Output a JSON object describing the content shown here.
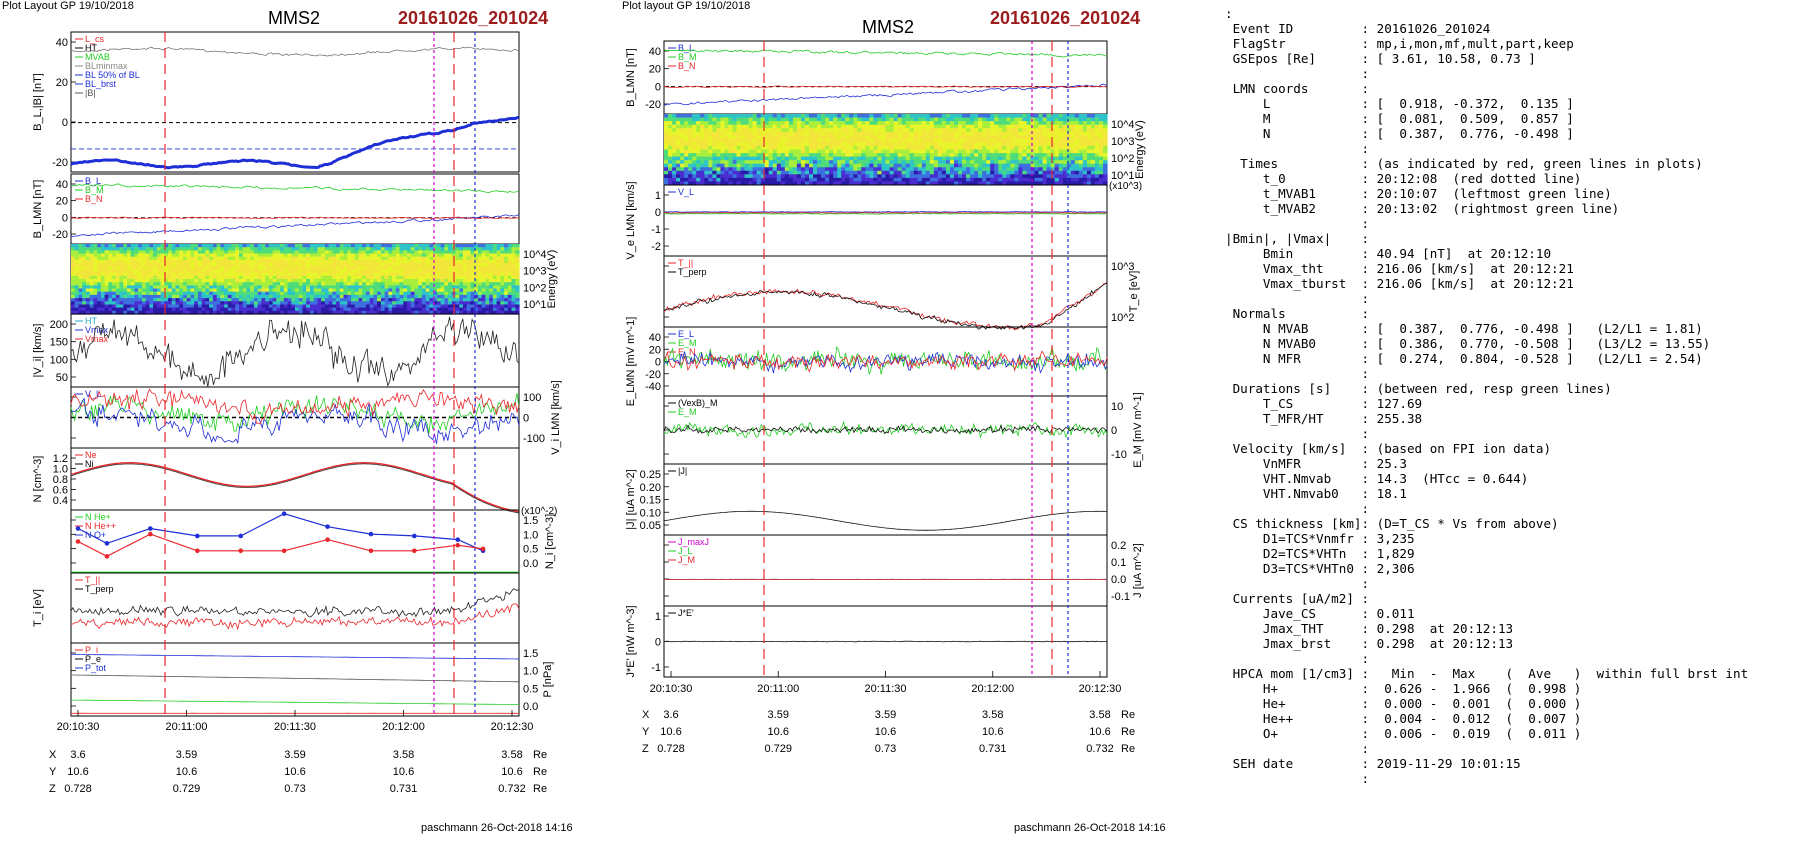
{
  "header": {
    "left_plot_label": "Plot Layout GP 19/10/2018",
    "mid_plot_label": "Plot layout GP 19/10/2018",
    "spacecraft": "MMS2",
    "event": "20161026_201024",
    "footer": "paschmann 26-Oct-2018 14:16"
  },
  "colors": {
    "event_red": "#9b1c1c",
    "red_line": "#e8262b",
    "magenta_line": "#d100d1",
    "blue_line": "#1f2fd6",
    "green_trace": "#22cc22"
  },
  "time_axis": {
    "ticks": [
      "20:10:30",
      "20:11:00",
      "20:11:30",
      "20:12:00",
      "20:12:30"
    ],
    "ephem": {
      "X": [
        "3.6",
        "3.59",
        "3.59",
        "3.58",
        "3.58"
      ],
      "Y": [
        "10.6",
        "10.6",
        "10.6",
        "10.6",
        "10.6"
      ],
      "Z": [
        "0.728",
        "0.729",
        "0.73",
        "0.731",
        "0.732"
      ],
      "unit": "Re"
    }
  },
  "chart_data": [
    {
      "type": "line",
      "figure": "left",
      "panels": [
        {
          "ylabel": "B_L,|B| [nT]",
          "yticks": [
            "40",
            "20",
            "0",
            "-20"
          ],
          "legend": [
            "L_cs",
            "HT",
            "MVAB",
            "BLminmax",
            "BL 50% of BL",
            "BL_brst",
            "|B|"
          ]
        },
        {
          "ylabel": "B_LMN [nT]",
          "yticks": [
            "40",
            "20",
            "0",
            "-20"
          ],
          "legend": [
            "B_L",
            "B_M",
            "B_N"
          ]
        },
        {
          "type": "heatmap",
          "ylabel": "Energy (eV)",
          "yticks": [
            "10^4",
            "10^3",
            "10^2",
            "10^1"
          ]
        },
        {
          "ylabel": "|V_i| [km/s]",
          "yticks": [
            "200",
            "150",
            "100",
            "50"
          ],
          "legend": [
            "HT",
            "Vmax",
            "Vmax"
          ]
        },
        {
          "ylabel": "V_i LMN [km/s]",
          "yticks": [
            "100",
            "0",
            "-100"
          ],
          "legend": [
            "V_L"
          ]
        },
        {
          "ylabel": "N [cm^-3]",
          "yticks": [
            "1.2",
            "1.0",
            "0.8",
            "0.6",
            "0.4"
          ],
          "legend": [
            "Ne",
            "Ni"
          ]
        },
        {
          "ylabel": "N_i [cm^-3]",
          "yticks": [
            "1.5",
            "1.0",
            "0.5",
            "0.0"
          ],
          "scale_note": "(x10^-2)",
          "legend": [
            "N He+",
            "N He++",
            "N O+"
          ],
          "series": [
            {
              "name": "N O+",
              "x": [
                "20:10:30",
                "20:10:38",
                "20:10:50",
                "20:11:03",
                "20:11:15",
                "20:11:27",
                "20:11:39",
                "20:11:51",
                "20:12:03",
                "20:12:15",
                "20:12:22"
              ],
              "values": [
                1.2,
                0.8,
                1.2,
                1.0,
                1.0,
                1.6,
                1.25,
                1.05,
                1.0,
                0.9,
                0.6
              ]
            },
            {
              "name": "N He++",
              "x": [
                "20:10:30",
                "20:10:38",
                "20:10:50",
                "20:11:03",
                "20:11:15",
                "20:11:27",
                "20:11:39",
                "20:11:51",
                "20:12:03",
                "20:12:15",
                "20:12:22"
              ],
              "values": [
                0.85,
                0.45,
                1.05,
                0.6,
                0.6,
                0.6,
                0.9,
                0.6,
                0.6,
                0.75,
                0.65
              ]
            }
          ]
        },
        {
          "ylabel": "T_i [eV]",
          "legend": [
            "T_||",
            "T_perp"
          ]
        },
        {
          "ylabel": "P [nPa]",
          "yticks": [
            "1.5",
            "1.0",
            "0.5",
            "0.0"
          ],
          "legend": [
            "P_i",
            "P_e",
            "P_tot"
          ]
        }
      ]
    },
    {
      "type": "line",
      "figure": "middle",
      "panels": [
        {
          "ylabel": "B_LMN [nT]",
          "yticks": [
            "40",
            "20",
            "0",
            "-20"
          ],
          "legend": [
            "B_L",
            "B_M",
            "B_N"
          ]
        },
        {
          "type": "heatmap",
          "ylabel": "Energy (eV)",
          "yticks": [
            "10^4",
            "10^3",
            "10^2",
            "10^1"
          ]
        },
        {
          "ylabel": "V_e LMN [km/s]",
          "yticks": [
            "1",
            "0",
            "-1",
            "-2"
          ],
          "scale_note": "(x10^3)",
          "legend": [
            "V_L"
          ]
        },
        {
          "ylabel": "T_e [eV]",
          "yticks": [
            "10^3",
            "10^2"
          ],
          "legend": [
            "T_||",
            "T_perp"
          ]
        },
        {
          "ylabel": "E_LMN [mV m^-1]",
          "yticks": [
            "40",
            "20",
            "0",
            "-20",
            "-40"
          ],
          "legend": [
            "E_L",
            "E_M",
            "E_N"
          ]
        },
        {
          "ylabel": "E_M [mV m^-1]",
          "yticks": [
            "10",
            "0",
            "-10"
          ],
          "legend": [
            "(VexB)_M",
            "E_M"
          ]
        },
        {
          "ylabel": "|J| [uA m^-2]",
          "yticks": [
            "0.25",
            "0.20",
            "0.15",
            "0.10",
            "0.05"
          ],
          "legend": [
            "|J|"
          ]
        },
        {
          "ylabel": "J [uA m^-2]",
          "yticks": [
            "0.2",
            "0.1",
            "0.0",
            "-0.1"
          ],
          "legend": [
            "J_maxJ",
            "J_L",
            "J_M"
          ]
        },
        {
          "ylabel": "J*E' [nW m^-3]",
          "yticks": [
            "1",
            "0",
            "-1"
          ],
          "legend": [
            "J*E'"
          ]
        }
      ]
    }
  ],
  "info": [
    ":",
    " Event ID         : 20161026_201024",
    " FlagStr          : mp,i,mon,mf,mult,part,keep",
    " GSEpos [Re]      : [ 3.61, 10.58, 0.73 ]",
    "                  :",
    " LMN coords       :",
    "     L            : [  0.918, -0.372,  0.135 ]",
    "     M            : [  0.081,  0.509,  0.857 ]",
    "     N            : [  0.387,  0.776, -0.498 ]",
    "                  :",
    "  Times           : (as indicated by red, green lines in plots)",
    "     t_0          : 20:12:08  (red dotted line)",
    "     t_MVAB1      : 20:10:07  (leftmost green line)",
    "     t_MVAB2      : 20:13:02  (rightmost green line)",
    "                  :",
    "|Bmin|, |Vmax|    :",
    "     Bmin         : 40.94 [nT]  at 20:12:10",
    "     Vmax_tht     : 216.06 [km/s]  at 20:12:21",
    "     Vmax_tburst  : 216.06 [km/s]  at 20:12:21",
    "                  :",
    " Normals          :",
    "     N MVAB       : [  0.387,  0.776, -0.498 ]   (L2/L1 = 1.81)",
    "     N MVAB0      : [  0.386,  0.770, -0.508 ]   (L3/L2 = 13.55)",
    "     N MFR        : [  0.274,  0.804, -0.528 ]   (L2/L1 = 2.54)",
    "                  :",
    " Durations [s]    : (between red, resp green lines)",
    "     T_CS         : 127.69",
    "     T_MFR/HT     : 255.38",
    "                  :",
    " Velocity [km/s]  : (based on FPI ion data)",
    "     VnMFR        : 25.3",
    "     VHT.Nmvab    : 14.3  (HTcc = 0.644)",
    "     VHT.Nmvab0   : 18.1",
    "                  :",
    " CS thickness [km]: (D=T_CS * Vs from above)",
    "     D1=TCS*Vnmfr : 3,235",
    "     D2=TCS*VHTn  : 1,829",
    "     D3=TCS*VHTn0 : 2,306",
    "                  :",
    " Currents [uA/m2] :",
    "     Jave_CS      : 0.011",
    "     Jmax_THT     : 0.298  at 20:12:13",
    "     Jmax_brst    : 0.298  at 20:12:13",
    "                  :",
    " HPCA mom [1/cm3] :   Min  -  Max    (  Ave   )  within full brst int",
    "     H+           :  0.626 -  1.966  (  0.998 )",
    "     He+          :  0.000 -  0.001  (  0.000 )",
    "     He++         :  0.004 -  0.012  (  0.007 )",
    "     O+           :  0.006 -  0.019  (  0.011 )",
    "                  :",
    " SEH date         : 2019-11-29 10:01:15",
    "                  :"
  ]
}
